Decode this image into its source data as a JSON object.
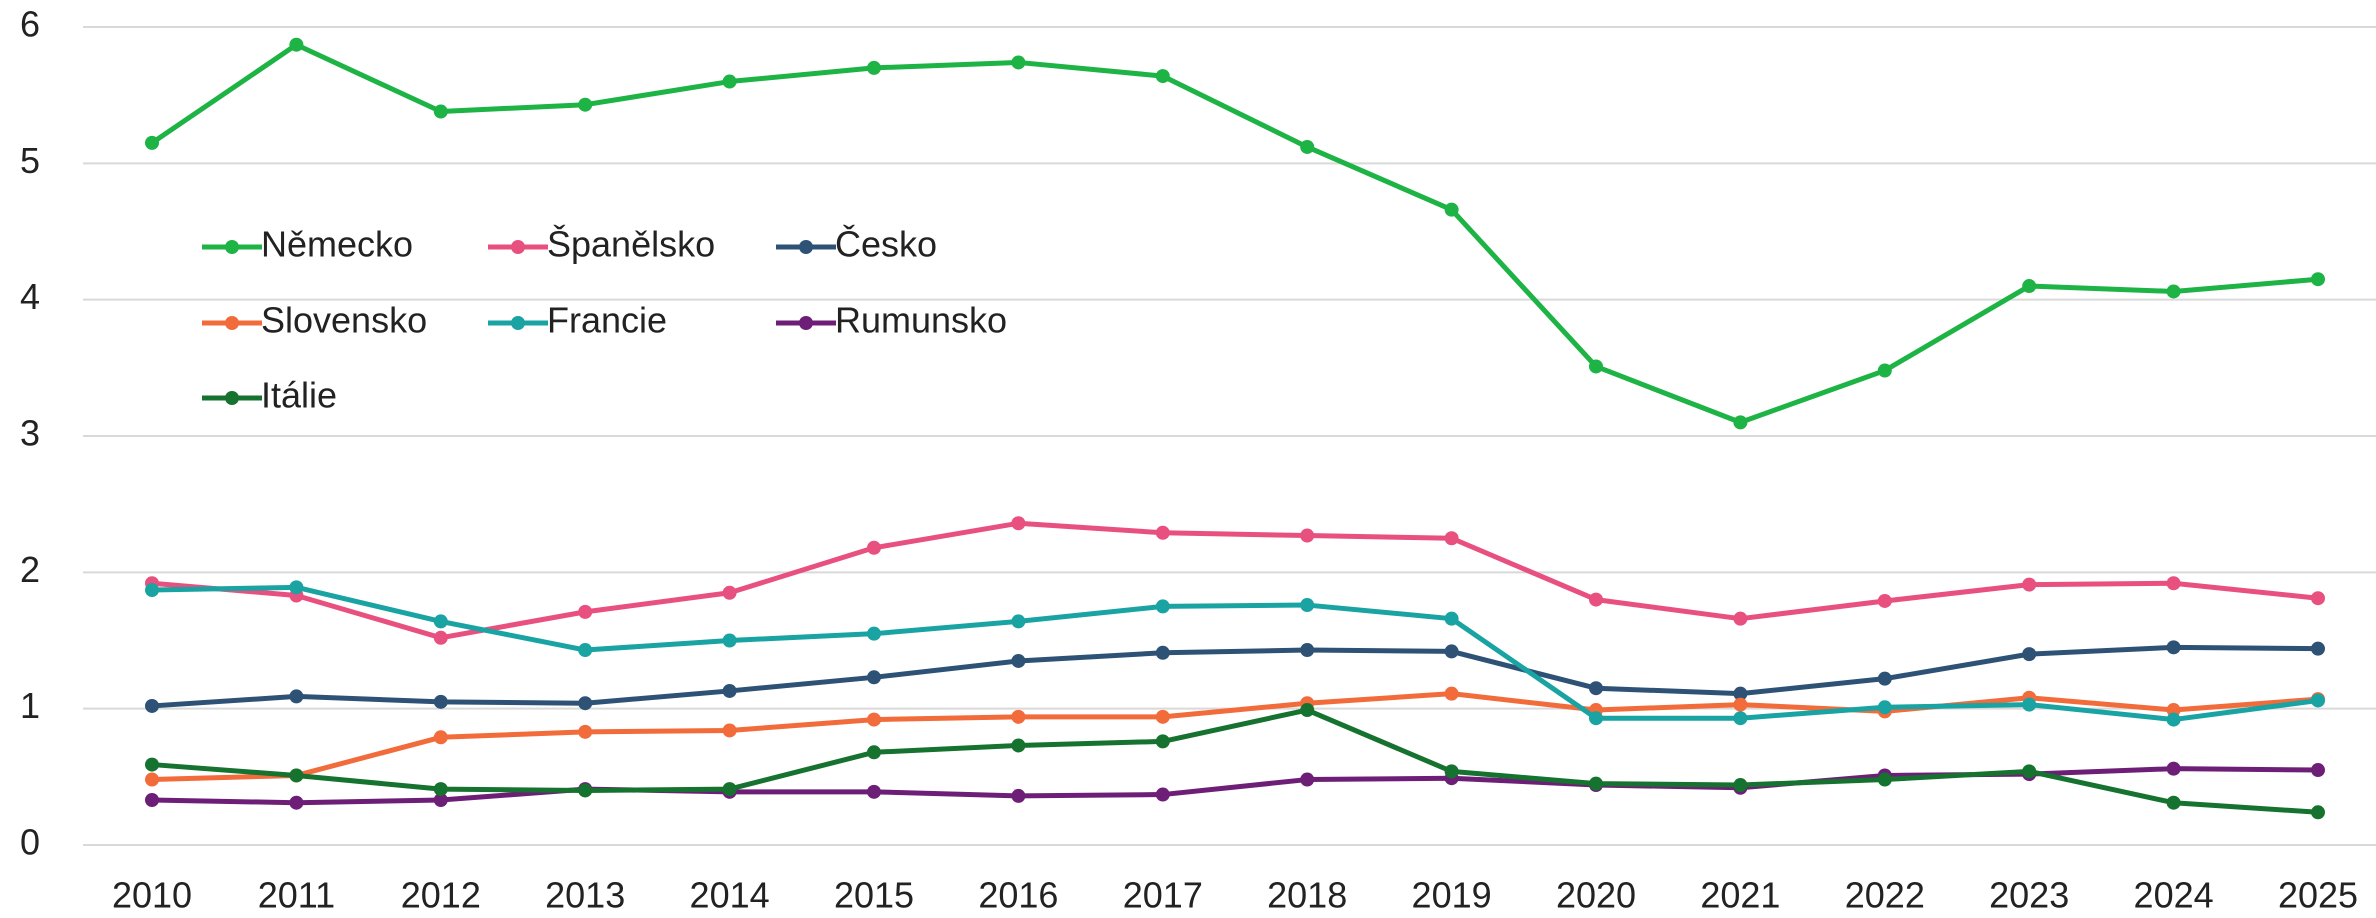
{
  "chart_data": {
    "type": "line",
    "categories": [
      "2010",
      "2011",
      "2012",
      "2013",
      "2014",
      "2015",
      "2016",
      "2017",
      "2018",
      "2019",
      "2020",
      "2021",
      "2022",
      "2023",
      "2024",
      "2025"
    ],
    "ylim": [
      0,
      6
    ],
    "yticks": [
      0,
      1,
      2,
      3,
      4,
      5,
      6
    ],
    "grid": true,
    "legend": "upper left",
    "series": [
      {
        "name": "Německo",
        "color": "#1db345",
        "values": [
          5.15,
          5.87,
          5.38,
          5.43,
          5.6,
          5.7,
          5.74,
          5.64,
          5.12,
          4.66,
          3.51,
          3.1,
          3.48,
          4.1,
          4.06,
          4.15
        ]
      },
      {
        "name": "Španělsko",
        "color": "#e8507f",
        "values": [
          1.92,
          1.83,
          1.52,
          1.71,
          1.85,
          2.18,
          2.36,
          2.29,
          2.27,
          2.25,
          1.8,
          1.66,
          1.79,
          1.91,
          1.92,
          1.81
        ]
      },
      {
        "name": "Česko",
        "color": "#2e5275",
        "values": [
          1.02,
          1.09,
          1.05,
          1.04,
          1.13,
          1.23,
          1.35,
          1.41,
          1.43,
          1.42,
          1.15,
          1.11,
          1.22,
          1.4,
          1.45,
          1.44
        ]
      },
      {
        "name": "Slovensko",
        "color": "#f26b3a",
        "values": [
          0.48,
          0.51,
          0.79,
          0.83,
          0.84,
          0.92,
          0.94,
          0.94,
          1.04,
          1.11,
          0.99,
          1.03,
          0.98,
          1.08,
          0.99,
          1.07
        ]
      },
      {
        "name": "Francie",
        "color": "#1aa3a3",
        "values": [
          1.87,
          1.89,
          1.64,
          1.43,
          1.5,
          1.55,
          1.64,
          1.75,
          1.76,
          1.66,
          0.93,
          0.93,
          1.01,
          1.03,
          0.92,
          1.06
        ]
      },
      {
        "name": "Rumunsko",
        "color": "#6d1f77",
        "values": [
          0.33,
          0.31,
          0.33,
          0.41,
          0.39,
          0.39,
          0.36,
          0.37,
          0.48,
          0.49,
          0.44,
          0.42,
          0.51,
          0.52,
          0.56,
          0.55
        ]
      },
      {
        "name": "Itálie",
        "color": "#16722f",
        "values": [
          0.59,
          0.51,
          0.41,
          0.4,
          0.41,
          0.68,
          0.73,
          0.76,
          0.99,
          0.54,
          0.45,
          0.44,
          0.48,
          0.54,
          0.31,
          0.24
        ]
      }
    ]
  }
}
